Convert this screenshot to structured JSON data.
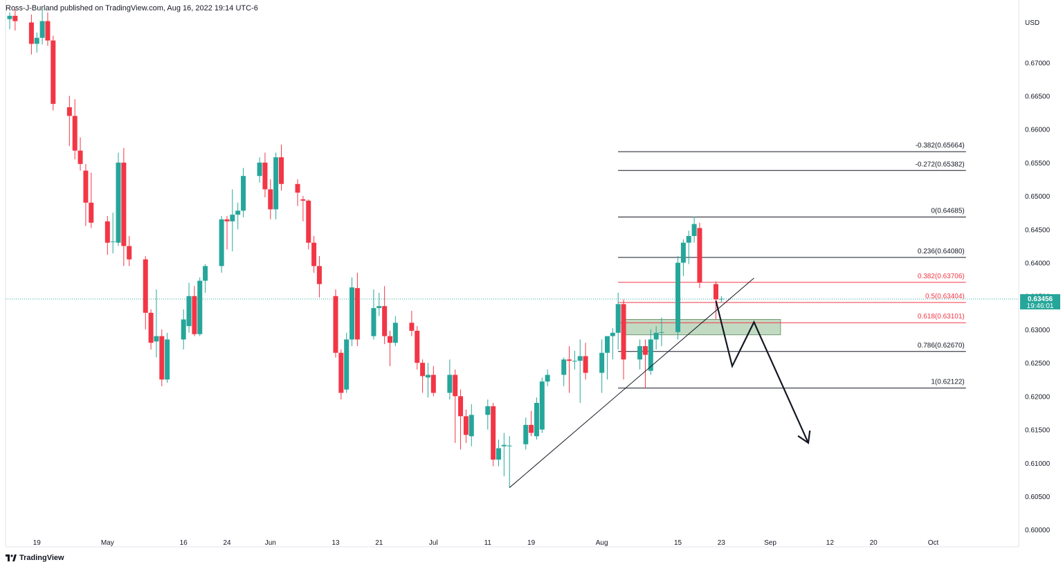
{
  "header": {
    "publisher_line": "Ross-J-Burland published on TradingView.com, Aug 16, 2022 19:14 UTC-6"
  },
  "branding": {
    "logo_text": "TradingView",
    "logo_icon": "tradingview-logo-icon"
  },
  "colors": {
    "up": "#26a69a",
    "down": "#f23645",
    "fib_red": "#f23645",
    "line": "#131722",
    "grid": "#e0e3eb",
    "zone": "#8fbc8f"
  },
  "chart_data": {
    "type": "candlestick",
    "currency_label": "USD",
    "price_axis": {
      "range": [
        0.5995,
        0.6775
      ],
      "ticks": [
        "0.67000",
        "0.66500",
        "0.66000",
        "0.65500",
        "0.65000",
        "0.64500",
        "0.64000",
        "0.63500",
        "0.63000",
        "0.62500",
        "0.62000",
        "0.61500",
        "0.61000",
        "0.60500",
        "0.60000"
      ],
      "tick_values": [
        0.67,
        0.665,
        0.66,
        0.655,
        0.65,
        0.645,
        0.64,
        0.635,
        0.63,
        0.625,
        0.62,
        0.615,
        0.61,
        0.605,
        0.6
      ]
    },
    "time_axis": {
      "start_date": "2022-04-14",
      "end_date": "2022-10-06",
      "labels": [
        {
          "date": "2022-04-19",
          "label": "19"
        },
        {
          "date": "2022-05-02",
          "label": "May"
        },
        {
          "date": "2022-05-16",
          "label": "16"
        },
        {
          "date": "2022-05-24",
          "label": "24"
        },
        {
          "date": "2022-06-01",
          "label": "Jun"
        },
        {
          "date": "2022-06-13",
          "label": "13"
        },
        {
          "date": "2022-06-21",
          "label": "21"
        },
        {
          "date": "2022-07-01",
          "label": "Jul"
        },
        {
          "date": "2022-07-11",
          "label": "11"
        },
        {
          "date": "2022-07-19",
          "label": "19"
        },
        {
          "date": "2022-08-01",
          "label": "Aug"
        },
        {
          "date": "2022-08-15",
          "label": "15"
        },
        {
          "date": "2022-08-23",
          "label": "23"
        },
        {
          "date": "2022-09-01",
          "label": "Sep"
        },
        {
          "date": "2022-09-12",
          "label": "12"
        },
        {
          "date": "2022-09-20",
          "label": "20"
        },
        {
          "date": "2022-10-01",
          "label": "Oct"
        }
      ]
    },
    "candles": [
      {
        "d": "2022-04-14",
        "o": 0.6765,
        "h": 0.6775,
        "l": 0.675,
        "c": 0.677
      },
      {
        "d": "2022-04-15",
        "o": 0.677,
        "h": 0.678,
        "l": 0.6748,
        "c": 0.6762
      },
      {
        "d": "2022-04-18",
        "o": 0.676,
        "h": 0.6772,
        "l": 0.6712,
        "c": 0.6728
      },
      {
        "d": "2022-04-19",
        "o": 0.6728,
        "h": 0.6745,
        "l": 0.6715,
        "c": 0.6737
      },
      {
        "d": "2022-04-20",
        "o": 0.6737,
        "h": 0.678,
        "l": 0.6727,
        "c": 0.6762
      },
      {
        "d": "2022-04-21",
        "o": 0.6762,
        "h": 0.6775,
        "l": 0.6725,
        "c": 0.6733
      },
      {
        "d": "2022-04-22",
        "o": 0.6733,
        "h": 0.674,
        "l": 0.6628,
        "c": 0.6638
      },
      {
        "d": "2022-04-25",
        "o": 0.6633,
        "h": 0.665,
        "l": 0.6575,
        "c": 0.662
      },
      {
        "d": "2022-04-26",
        "o": 0.662,
        "h": 0.6645,
        "l": 0.6555,
        "c": 0.6568
      },
      {
        "d": "2022-04-27",
        "o": 0.6568,
        "h": 0.6588,
        "l": 0.6538,
        "c": 0.6548
      },
      {
        "d": "2022-04-28",
        "o": 0.6538,
        "h": 0.6548,
        "l": 0.6455,
        "c": 0.649
      },
      {
        "d": "2022-04-29",
        "o": 0.649,
        "h": 0.6535,
        "l": 0.6452,
        "c": 0.646
      },
      {
        "d": "2022-05-02",
        "o": 0.6462,
        "h": 0.647,
        "l": 0.6412,
        "c": 0.643
      },
      {
        "d": "2022-05-03",
        "o": 0.6432,
        "h": 0.6475,
        "l": 0.6414,
        "c": 0.6432
      },
      {
        "d": "2022-05-04",
        "o": 0.643,
        "h": 0.6565,
        "l": 0.6425,
        "c": 0.655
      },
      {
        "d": "2022-05-05",
        "o": 0.655,
        "h": 0.6572,
        "l": 0.6395,
        "c": 0.6425
      },
      {
        "d": "2022-05-06",
        "o": 0.6425,
        "h": 0.644,
        "l": 0.6395,
        "c": 0.6405
      },
      {
        "d": "2022-05-09",
        "o": 0.6405,
        "h": 0.641,
        "l": 0.63,
        "c": 0.6325
      },
      {
        "d": "2022-05-10",
        "o": 0.6325,
        "h": 0.633,
        "l": 0.627,
        "c": 0.628
      },
      {
        "d": "2022-05-11",
        "o": 0.6282,
        "h": 0.636,
        "l": 0.6258,
        "c": 0.629
      },
      {
        "d": "2022-05-12",
        "o": 0.629,
        "h": 0.63,
        "l": 0.6215,
        "c": 0.6225
      },
      {
        "d": "2022-05-13",
        "o": 0.6225,
        "h": 0.6295,
        "l": 0.622,
        "c": 0.6285
      },
      {
        "d": "2022-05-16",
        "o": 0.6285,
        "h": 0.633,
        "l": 0.627,
        "c": 0.6315
      },
      {
        "d": "2022-05-17",
        "o": 0.6305,
        "h": 0.637,
        "l": 0.6295,
        "c": 0.635
      },
      {
        "d": "2022-05-18",
        "o": 0.635,
        "h": 0.6365,
        "l": 0.629,
        "c": 0.6293
      },
      {
        "d": "2022-05-19",
        "o": 0.6293,
        "h": 0.6378,
        "l": 0.629,
        "c": 0.6373
      },
      {
        "d": "2022-05-20",
        "o": 0.6373,
        "h": 0.6398,
        "l": 0.6355,
        "c": 0.6395
      },
      {
        "d": "2022-05-23",
        "o": 0.6395,
        "h": 0.647,
        "l": 0.6385,
        "c": 0.6465
      },
      {
        "d": "2022-05-24",
        "o": 0.6465,
        "h": 0.647,
        "l": 0.642,
        "c": 0.6462
      },
      {
        "d": "2022-05-25",
        "o": 0.6462,
        "h": 0.651,
        "l": 0.6417,
        "c": 0.6472
      },
      {
        "d": "2022-05-26",
        "o": 0.6472,
        "h": 0.649,
        "l": 0.645,
        "c": 0.6478
      },
      {
        "d": "2022-05-27",
        "o": 0.6478,
        "h": 0.6542,
        "l": 0.6468,
        "c": 0.653
      },
      {
        "d": "2022-05-30",
        "o": 0.653,
        "h": 0.6558,
        "l": 0.652,
        "c": 0.655
      },
      {
        "d": "2022-05-31",
        "o": 0.655,
        "h": 0.6565,
        "l": 0.6498,
        "c": 0.651
      },
      {
        "d": "2022-06-01",
        "o": 0.651,
        "h": 0.6525,
        "l": 0.6465,
        "c": 0.648
      },
      {
        "d": "2022-06-02",
        "o": 0.648,
        "h": 0.6565,
        "l": 0.6465,
        "c": 0.6558
      },
      {
        "d": "2022-06-03",
        "o": 0.6558,
        "h": 0.6577,
        "l": 0.6508,
        "c": 0.6518
      },
      {
        "d": "2022-06-06",
        "o": 0.6518,
        "h": 0.6525,
        "l": 0.6485,
        "c": 0.6505
      },
      {
        "d": "2022-06-07",
        "o": 0.6495,
        "h": 0.65,
        "l": 0.6462,
        "c": 0.6493
      },
      {
        "d": "2022-06-08",
        "o": 0.6493,
        "h": 0.6495,
        "l": 0.642,
        "c": 0.643
      },
      {
        "d": "2022-06-09",
        "o": 0.643,
        "h": 0.644,
        "l": 0.6385,
        "c": 0.6395
      },
      {
        "d": "2022-06-10",
        "o": 0.6395,
        "h": 0.641,
        "l": 0.6348,
        "c": 0.6368
      },
      {
        "d": "2022-06-13",
        "o": 0.635,
        "h": 0.636,
        "l": 0.6258,
        "c": 0.6265
      },
      {
        "d": "2022-06-14",
        "o": 0.6265,
        "h": 0.627,
        "l": 0.6195,
        "c": 0.6205
      },
      {
        "d": "2022-06-15",
        "o": 0.621,
        "h": 0.6295,
        "l": 0.6205,
        "c": 0.6285
      },
      {
        "d": "2022-06-16",
        "o": 0.6285,
        "h": 0.6378,
        "l": 0.6275,
        "c": 0.6363
      },
      {
        "d": "2022-06-17",
        "o": 0.6362,
        "h": 0.6385,
        "l": 0.6275,
        "c": 0.6285
      },
      {
        "d": "2022-06-20",
        "o": 0.629,
        "h": 0.636,
        "l": 0.6285,
        "c": 0.6332
      },
      {
        "d": "2022-06-21",
        "o": 0.6332,
        "h": 0.6355,
        "l": 0.632,
        "c": 0.6335
      },
      {
        "d": "2022-06-22",
        "o": 0.6335,
        "h": 0.6365,
        "l": 0.6278,
        "c": 0.629
      },
      {
        "d": "2022-06-23",
        "o": 0.629,
        "h": 0.6298,
        "l": 0.6245,
        "c": 0.628
      },
      {
        "d": "2022-06-24",
        "o": 0.628,
        "h": 0.632,
        "l": 0.6275,
        "c": 0.631
      },
      {
        "d": "2022-06-27",
        "o": 0.631,
        "h": 0.6328,
        "l": 0.629,
        "c": 0.6298
      },
      {
        "d": "2022-06-28",
        "o": 0.6298,
        "h": 0.6305,
        "l": 0.624,
        "c": 0.625
      },
      {
        "d": "2022-06-29",
        "o": 0.625,
        "h": 0.6255,
        "l": 0.6205,
        "c": 0.623
      },
      {
        "d": "2022-06-30",
        "o": 0.6228,
        "h": 0.625,
        "l": 0.6198,
        "c": 0.6232
      },
      {
        "d": "2022-07-01",
        "o": 0.6232,
        "h": 0.6245,
        "l": 0.62,
        "c": 0.6205
      },
      {
        "d": "2022-07-04",
        "o": 0.6205,
        "h": 0.6255,
        "l": 0.6195,
        "c": 0.6232
      },
      {
        "d": "2022-07-05",
        "o": 0.6232,
        "h": 0.624,
        "l": 0.613,
        "c": 0.62
      },
      {
        "d": "2022-07-06",
        "o": 0.62,
        "h": 0.621,
        "l": 0.612,
        "c": 0.617
      },
      {
        "d": "2022-07-07",
        "o": 0.617,
        "h": 0.618,
        "l": 0.613,
        "c": 0.6142
      },
      {
        "d": "2022-07-08",
        "o": 0.614,
        "h": 0.6188,
        "l": 0.6125,
        "c": 0.6172
      },
      {
        "d": "2022-07-11",
        "o": 0.6172,
        "h": 0.6195,
        "l": 0.615,
        "c": 0.6185
      },
      {
        "d": "2022-07-12",
        "o": 0.6185,
        "h": 0.619,
        "l": 0.6095,
        "c": 0.6105
      },
      {
        "d": "2022-07-13",
        "o": 0.6105,
        "h": 0.6135,
        "l": 0.6095,
        "c": 0.6122
      },
      {
        "d": "2022-07-14",
        "o": 0.6125,
        "h": 0.6145,
        "l": 0.608,
        "c": 0.6127
      },
      {
        "d": "2022-07-15",
        "o": 0.6125,
        "h": 0.614,
        "l": 0.6063,
        "c": 0.6126
      },
      {
        "d": "2022-07-18",
        "o": 0.6128,
        "h": 0.6168,
        "l": 0.612,
        "c": 0.6157
      },
      {
        "d": "2022-07-19",
        "o": 0.6157,
        "h": 0.6178,
        "l": 0.614,
        "c": 0.6145
      },
      {
        "d": "2022-07-20",
        "o": 0.614,
        "h": 0.6198,
        "l": 0.6135,
        "c": 0.619
      },
      {
        "d": "2022-07-21",
        "o": 0.615,
        "h": 0.6228,
        "l": 0.6145,
        "c": 0.6222
      },
      {
        "d": "2022-07-22",
        "o": 0.6222,
        "h": 0.624,
        "l": 0.6215,
        "c": 0.6232
      },
      {
        "d": "2022-07-25",
        "o": 0.6232,
        "h": 0.6258,
        "l": 0.6215,
        "c": 0.6255
      },
      {
        "d": "2022-07-26",
        "o": 0.6255,
        "h": 0.6275,
        "l": 0.6205,
        "c": 0.6253
      },
      {
        "d": "2022-07-27",
        "o": 0.6253,
        "h": 0.6268,
        "l": 0.624,
        "c": 0.6253
      },
      {
        "d": "2022-07-28",
        "o": 0.6253,
        "h": 0.6285,
        "l": 0.619,
        "c": 0.626
      },
      {
        "d": "2022-07-29",
        "o": 0.626,
        "h": 0.628,
        "l": 0.6225,
        "c": 0.6235
      },
      {
        "d": "2022-08-01",
        "o": 0.6235,
        "h": 0.6285,
        "l": 0.6205,
        "c": 0.6265
      },
      {
        "d": "2022-08-02",
        "o": 0.6265,
        "h": 0.6288,
        "l": 0.6225,
        "c": 0.629
      },
      {
        "d": "2022-08-03",
        "o": 0.629,
        "h": 0.6302,
        "l": 0.6255,
        "c": 0.6295
      },
      {
        "d": "2022-08-04",
        "o": 0.6295,
        "h": 0.6355,
        "l": 0.627,
        "c": 0.6338
      },
      {
        "d": "2022-08-05",
        "o": 0.6338,
        "h": 0.6345,
        "l": 0.6225,
        "c": 0.6255
      },
      {
        "d": "2022-08-08",
        "o": 0.6255,
        "h": 0.6285,
        "l": 0.624,
        "c": 0.6275
      },
      {
        "d": "2022-08-09",
        "o": 0.6275,
        "h": 0.6285,
        "l": 0.6212,
        "c": 0.6262
      },
      {
        "d": "2022-08-10",
        "o": 0.6238,
        "h": 0.63,
        "l": 0.6232,
        "c": 0.6285
      },
      {
        "d": "2022-08-11",
        "o": 0.6285,
        "h": 0.6305,
        "l": 0.627,
        "c": 0.6295
      },
      {
        "d": "2022-08-12",
        "o": 0.6295,
        "h": 0.6318,
        "l": 0.6275,
        "c": 0.6296
      },
      {
        "d": "2022-08-15",
        "o": 0.6296,
        "h": 0.641,
        "l": 0.6285,
        "c": 0.64
      },
      {
        "d": "2022-08-16",
        "o": 0.64,
        "h": 0.6435,
        "l": 0.638,
        "c": 0.643
      },
      {
        "d": "2022-08-17",
        "o": 0.643,
        "h": 0.6448,
        "l": 0.6398,
        "c": 0.644
      },
      {
        "d": "2022-08-18",
        "o": 0.644,
        "h": 0.6469,
        "l": 0.643,
        "c": 0.6458
      },
      {
        "d": "2022-08-19",
        "o": 0.6452,
        "h": 0.646,
        "l": 0.6362,
        "c": 0.637
      },
      {
        "d": "2022-08-22",
        "o": 0.6368,
        "h": 0.6372,
        "l": 0.6315,
        "c": 0.6345
      },
      {
        "d": "2022-08-23",
        "o": 0.6345,
        "h": 0.635,
        "l": 0.634,
        "c": 0.6346
      }
    ],
    "current_price": {
      "value": 0.63456,
      "label": "0.63456",
      "countdown": "19:46:01"
    },
    "fibonacci": {
      "start_date": "2022-08-05",
      "end_date": "2022-10-06",
      "levels": [
        {
          "label": "-0.382(0.65664)",
          "value": 0.65664,
          "color": "#131722"
        },
        {
          "label": "-0.272(0.65382)",
          "value": 0.65382,
          "color": "#131722"
        },
        {
          "label": "0(0.64685)",
          "value": 0.64685,
          "color": "#131722"
        },
        {
          "label": "0.236(0.64080)",
          "value": 0.6408,
          "color": "#131722"
        },
        {
          "label": "0.382(0.63706)",
          "value": 0.63706,
          "color": "#f23645"
        },
        {
          "label": "0.5(0.63404)",
          "value": 0.63404,
          "color": "#f23645"
        },
        {
          "label": "0.618(0.63101)",
          "value": 0.63101,
          "color": "#f23645"
        },
        {
          "label": "0.786(0.62670)",
          "value": 0.6267,
          "color": "#131722"
        },
        {
          "label": "1(0.62122)",
          "value": 0.62122,
          "color": "#131722"
        }
      ]
    },
    "trendline": {
      "points": [
        {
          "d": "2022-07-15",
          "p": 0.6063
        },
        {
          "d": "2022-08-29",
          "p": 0.6377
        }
      ]
    },
    "zone": {
      "start_date": "2022-08-05",
      "end_date": "2022-09-02",
      "top": 0.6315,
      "bottom": 0.6292
    },
    "projection_path": [
      {
        "d": "2022-08-22",
        "p": 0.6343
      },
      {
        "d": "2022-08-25",
        "p": 0.6245
      },
      {
        "d": "2022-08-29",
        "p": 0.6311
      },
      {
        "d": "2022-09-08",
        "p": 0.613
      }
    ]
  }
}
